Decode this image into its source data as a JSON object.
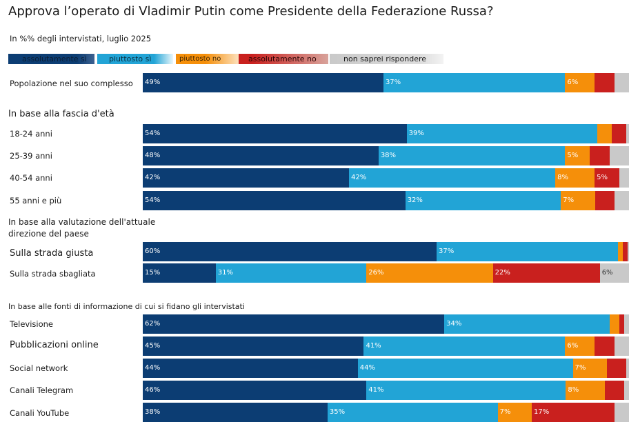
{
  "title": "Approva l’operato di Vladimir Putin come Presidente della Federazione Russa?",
  "subtitle": "In %% degli intervistati, luglio 2025",
  "colors": [
    "#0c3d73",
    "#22a4d6",
    "#f58f0a",
    "#c9201e",
    "#c9c9c9"
  ],
  "legend": [
    "assolutamente sì",
    "piuttosto sì",
    "piuttosto no",
    "assolutamente no",
    "non saprei rispondere"
  ],
  "sections": [
    "In base alla fascia d'età",
    "In base alla valutazione dell'attuale direzione del paese",
    "In base alle fonti di informazione di cui si fidano gli intervistati"
  ],
  "chart_data": {
    "type": "bar",
    "orientation": "horizontal",
    "stacked": true,
    "categories": [
      "Popolazione nel suo complesso",
      "18-24 anni",
      "25-39 anni",
      "40-54 anni",
      "55 anni e più",
      "Sulla strada giusta",
      "Sulla strada sbagliata",
      "Televisione",
      "Pubblicazioni online",
      "Social network",
      "Canali Telegram",
      "Canali YouTube"
    ],
    "series": [
      {
        "name": "assolutamente sì",
        "values": [
          49,
          54,
          48,
          42,
          54,
          60,
          15,
          62,
          45,
          44,
          46,
          38
        ]
      },
      {
        "name": "piuttosto sì",
        "values": [
          37,
          39,
          38,
          42,
          32,
          37,
          31,
          34,
          41,
          44,
          41,
          35
        ]
      },
      {
        "name": "piuttosto no",
        "values": [
          6,
          3,
          5,
          8,
          7,
          1,
          26,
          2,
          6,
          7,
          8,
          7
        ]
      },
      {
        "name": "assolutamente no",
        "values": [
          4,
          3,
          4,
          5,
          4,
          1,
          22,
          1,
          4,
          4,
          4,
          17
        ]
      },
      {
        "name": "non saprei rispondere",
        "values": [
          3,
          0.5,
          4,
          2,
          3,
          0.3,
          6,
          1,
          3,
          0.5,
          1,
          3
        ]
      }
    ],
    "value_labels": [
      [
        "49%",
        "37%",
        "6%",
        "",
        ""
      ],
      [
        "54%",
        "39%",
        "",
        "",
        ""
      ],
      [
        "48%",
        "38%",
        "5%",
        "",
        ""
      ],
      [
        "42%",
        "42%",
        "8%",
        "5%",
        ""
      ],
      [
        "54%",
        "32%",
        "7%",
        "",
        ""
      ],
      [
        "60%",
        "37%",
        "",
        "",
        ""
      ],
      [
        "15%",
        "31%",
        "26%",
        "22%",
        "6%"
      ],
      [
        "62%",
        "34%",
        "",
        "",
        ""
      ],
      [
        "45%",
        "41%",
        "6%",
        "",
        ""
      ],
      [
        "44%",
        "44%",
        "7%",
        "",
        ""
      ],
      [
        "46%",
        "41%",
        "8%",
        "",
        ""
      ],
      [
        "38%",
        "35%",
        "7%",
        "17%",
        ""
      ]
    ]
  }
}
